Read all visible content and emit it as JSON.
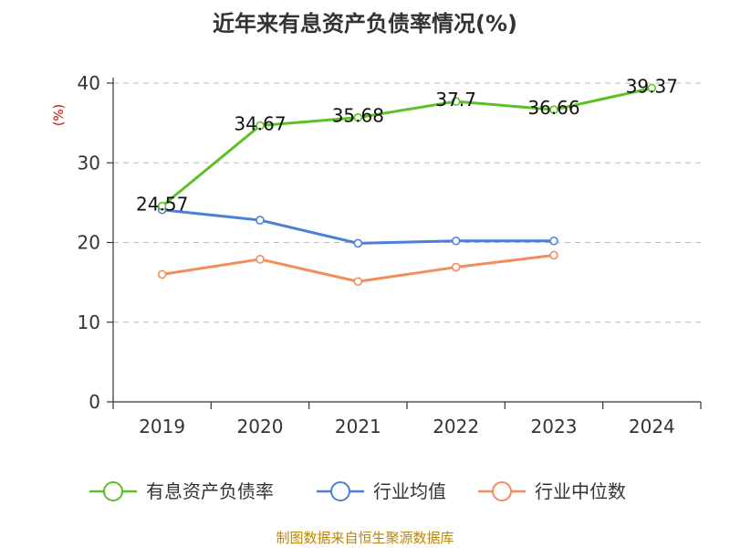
{
  "chart_data": {
    "type": "line",
    "title": "近年来有息资产负债率情况(%)",
    "ylabel": "(%)",
    "xlabel": "",
    "categories": [
      "2019",
      "2020",
      "2021",
      "2022",
      "2023",
      "2024"
    ],
    "ylim": [
      0,
      40
    ],
    "yticks": [
      0,
      10,
      20,
      30,
      40
    ],
    "grid": true,
    "legend_position": "bottom",
    "series": [
      {
        "name": "有息资产负债率",
        "color": "#5cc126",
        "values": [
          24.57,
          34.67,
          35.68,
          37.7,
          36.66,
          39.37
        ],
        "labeled": true
      },
      {
        "name": "行业均值",
        "color": "#4c7fd9",
        "values": [
          24.1,
          22.8,
          19.9,
          20.2,
          20.2,
          null
        ],
        "labeled": false
      },
      {
        "name": "行业中位数",
        "color": "#f58c5b",
        "values": [
          16.0,
          17.9,
          15.1,
          16.9,
          18.4,
          null
        ],
        "labeled": false
      }
    ],
    "data_labels": [
      "24.57",
      "34.67",
      "35.68",
      "37.7",
      "36.66",
      "39.37"
    ]
  },
  "source": "制图数据来自恒生聚源数据库"
}
